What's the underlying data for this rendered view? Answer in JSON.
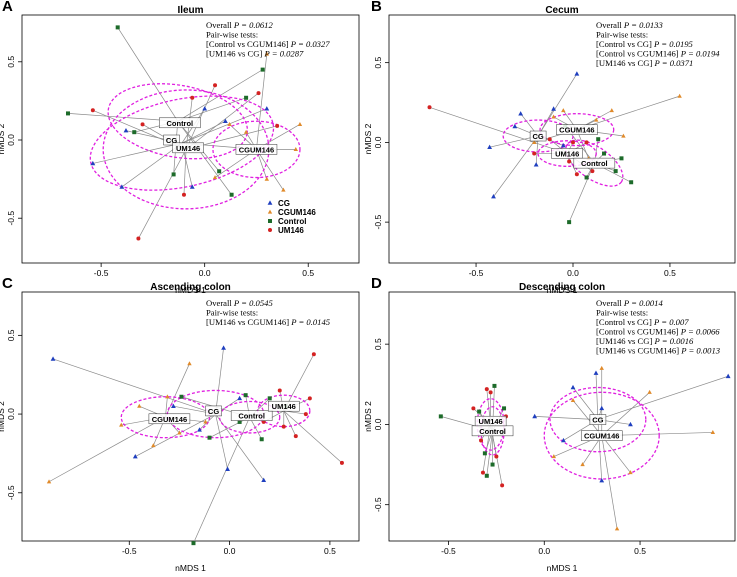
{
  "colors": {
    "CG": "#1f3fbf",
    "CGUM146": "#e08a2a",
    "Control": "#1d6b2a",
    "UM146": "#d42222",
    "ellipse": "#e020e0",
    "spoke": "#8a8a8a"
  },
  "chart_data": [
    {
      "type": "scatter",
      "letter": "A",
      "title": "Ileum",
      "xlabel": "nMDS 1",
      "ylabel": "nMDS 2",
      "xlim": [
        -0.8,
        0.75
      ],
      "ylim": [
        -0.78,
        0.78
      ],
      "xticks": [
        -0.5,
        0.0,
        0.5
      ],
      "xtick_labels": [
        "-0.5",
        "0.0",
        "0.5"
      ],
      "yticks": [
        -0.5,
        0.0,
        0.5
      ],
      "ytick_labels": [
        "-0.5",
        "0.0",
        "0.5"
      ],
      "annotations": [
        [
          "Overall ",
          "P = 0.0612"
        ],
        [
          "Pair-wise tests:",
          ""
        ],
        [
          "[Control vs CGUM146] ",
          "P = 0.0327"
        ],
        [
          "[UM146 vs CG] ",
          "P = 0.0287"
        ]
      ],
      "legend": {
        "entries": [
          "CG",
          "CGUM146",
          "Control",
          "UM146"
        ]
      },
      "groups": [
        {
          "name": "Control",
          "centroid": [
            -0.13,
            0.12
          ],
          "ell": [
            0.34,
            0.23,
            -10
          ],
          "points": [
            [
              -0.42,
              0.72
            ],
            [
              -0.66,
              0.17
            ],
            [
              0.28,
              0.45
            ],
            [
              0.2,
              0.27
            ],
            [
              0.07,
              -0.2
            ],
            [
              -0.15,
              -0.22
            ],
            [
              0.13,
              -0.35
            ],
            [
              -0.34,
              0.05
            ]
          ]
        },
        {
          "name": "CG",
          "centroid": [
            -0.11,
            -0.02
          ],
          "ell": [
            0.45,
            0.28,
            12
          ],
          "points": [
            [
              -0.54,
              -0.15
            ],
            [
              0.1,
              0.12
            ],
            [
              0.0,
              0.2
            ],
            [
              -0.38,
              0.06
            ],
            [
              -0.06,
              -0.3
            ],
            [
              0.3,
              0.2
            ],
            [
              0.26,
              -0.06
            ],
            [
              -0.4,
              -0.3
            ]
          ]
        },
        {
          "name": "UM146",
          "centroid": [
            -0.09,
            -0.06
          ],
          "ell": [
            0.4,
            0.38,
            0
          ],
          "points": [
            [
              -0.54,
              0.19
            ],
            [
              -0.06,
              0.27
            ],
            [
              -0.32,
              -0.63
            ],
            [
              -0.1,
              -0.35
            ],
            [
              0.26,
              0.3
            ],
            [
              0.35,
              0.09
            ],
            [
              0.05,
              0.35
            ],
            [
              -0.3,
              0.1
            ]
          ]
        },
        {
          "name": "CGUM146",
          "centroid": [
            0.25,
            -0.06
          ],
          "ell": [
            0.21,
            0.18,
            0
          ],
          "points": [
            [
              0.3,
              0.55
            ],
            [
              0.38,
              -0.32
            ],
            [
              0.12,
              0.1
            ],
            [
              0.46,
              0.1
            ],
            [
              0.44,
              -0.06
            ],
            [
              0.05,
              -0.24
            ],
            [
              0.3,
              -0.25
            ],
            [
              0.2,
              0.05
            ]
          ]
        }
      ],
      "labels": [
        [
          "Control",
          -0.12,
          0.11
        ],
        [
          "CG",
          -0.16,
          0.0
        ],
        [
          "UM146",
          -0.08,
          -0.05
        ],
        [
          "CGUM146",
          0.25,
          -0.06
        ]
      ]
    },
    {
      "type": "scatter",
      "letter": "B",
      "title": "Cecum",
      "xlabel": "nMDS 1",
      "ylabel": "nMDS 2",
      "xlim": [
        -0.82,
        0.82
      ],
      "ylim": [
        -0.75,
        0.78
      ],
      "xticks": [
        -0.5,
        0.0,
        0.5
      ],
      "xtick_labels": [
        "-0.5",
        "0.0",
        "0.5"
      ],
      "yticks": [
        -0.5,
        0.0,
        0.5
      ],
      "ytick_labels": [
        "-0.5",
        "0.0",
        "0.5"
      ],
      "annotations": [
        [
          "Overall ",
          "P = 0.0133"
        ],
        [
          "Pair-wise tests:",
          ""
        ],
        [
          "[Control vs CG] ",
          "P = 0.0195"
        ],
        [
          "[Control vs CGUM146] ",
          "P = 0.0194"
        ],
        [
          "[UM146 vs CG] ",
          "P = 0.0371"
        ]
      ],
      "groups": [
        {
          "name": "CG",
          "centroid": [
            -0.18,
            0.04
          ],
          "ell": [
            0.18,
            0.1,
            0
          ],
          "points": [
            [
              -0.41,
              -0.34
            ],
            [
              -0.43,
              -0.03
            ],
            [
              0.02,
              0.43
            ],
            [
              -0.1,
              0.21
            ],
            [
              -0.3,
              0.1
            ],
            [
              -0.27,
              0.18
            ],
            [
              -0.05,
              -0.02
            ],
            [
              -0.19,
              -0.14
            ]
          ]
        },
        {
          "name": "CGUM146",
          "centroid": [
            0.02,
            0.08
          ],
          "ell": [
            0.19,
            0.1,
            0
          ],
          "points": [
            [
              0.55,
              0.29
            ],
            [
              0.2,
              0.2
            ],
            [
              -0.1,
              0.16
            ],
            [
              0.12,
              0.14
            ],
            [
              -0.2,
              0.0
            ],
            [
              0.08,
              -0.1
            ],
            [
              0.26,
              0.04
            ],
            [
              -0.05,
              0.2
            ]
          ]
        },
        {
          "name": "UM146",
          "centroid": [
            -0.03,
            -0.07
          ],
          "ell": [
            0.15,
            0.08,
            0
          ],
          "points": [
            [
              -0.74,
              0.22
            ],
            [
              -0.2,
              -0.07
            ],
            [
              0.07,
              0.0
            ],
            [
              -0.02,
              -0.12
            ],
            [
              0.1,
              -0.18
            ],
            [
              0.02,
              -0.2
            ],
            [
              -0.12,
              0.02
            ],
            [
              0.0,
              0.0
            ]
          ]
        },
        {
          "name": "Control",
          "centroid": [
            0.11,
            -0.13
          ],
          "ell": [
            0.17,
            0.1,
            -35
          ],
          "points": [
            [
              -0.02,
              -0.5
            ],
            [
              0.16,
              -0.07
            ],
            [
              0.3,
              -0.25
            ],
            [
              0.25,
              -0.1
            ],
            [
              0.07,
              -0.22
            ],
            [
              0.13,
              0.02
            ],
            [
              -0.04,
              0.1
            ],
            [
              0.22,
              -0.18
            ]
          ]
        }
      ],
      "labels": [
        [
          "CG",
          -0.18,
          0.04
        ],
        [
          "CGUM146",
          0.02,
          0.08
        ],
        [
          "UM146",
          -0.03,
          -0.07
        ],
        [
          "Control",
          0.11,
          -0.13
        ]
      ]
    },
    {
      "type": "scatter",
      "letter": "C",
      "title": "Ascending colon",
      "xlabel": "nMDS 1",
      "ylabel": "nMDS 2",
      "xlim": [
        -0.95,
        0.65
      ],
      "ylim": [
        -0.8,
        0.75
      ],
      "xticks": [
        -0.5,
        0.0,
        0.5
      ],
      "xtick_labels": [
        "-0.5",
        "0.0",
        "0.5"
      ],
      "yticks": [
        -0.5,
        0.0,
        0.5
      ],
      "ytick_labels": [
        "-0.5",
        "0.0",
        "0.5"
      ],
      "annotations": [
        [
          "Overall ",
          "P = 0.0545"
        ],
        [
          "Pair-wise tests:",
          ""
        ],
        [
          "[UM146 vs CGUM146] ",
          "P = 0.0145"
        ]
      ],
      "groups": [
        {
          "name": "CGUM146",
          "centroid": [
            -0.32,
            -0.02
          ],
          "ell": [
            0.22,
            0.13,
            0
          ],
          "points": [
            [
              -0.9,
              -0.43
            ],
            [
              -0.54,
              -0.07
            ],
            [
              -0.31,
              0.11
            ],
            [
              -0.12,
              -0.05
            ],
            [
              -0.45,
              0.05
            ],
            [
              -0.2,
              0.32
            ],
            [
              -0.38,
              -0.2
            ],
            [
              -0.25,
              -0.12
            ]
          ]
        },
        {
          "name": "CG",
          "centroid": [
            -0.07,
            0.0
          ],
          "ell": [
            0.24,
            0.15,
            0
          ],
          "points": [
            [
              -0.88,
              0.35
            ],
            [
              -0.47,
              -0.27
            ],
            [
              -0.03,
              0.42
            ],
            [
              -0.01,
              -0.35
            ],
            [
              0.17,
              -0.42
            ],
            [
              -0.28,
              0.05
            ],
            [
              0.05,
              0.1
            ],
            [
              -0.15,
              -0.1
            ]
          ]
        },
        {
          "name": "Control",
          "centroid": [
            0.1,
            -0.02
          ],
          "ell": [
            0.15,
            0.1,
            0
          ],
          "points": [
            [
              -0.18,
              -0.82
            ],
            [
              -0.24,
              0.11
            ],
            [
              0.08,
              0.12
            ],
            [
              0.16,
              -0.16
            ],
            [
              0.28,
              0.05
            ],
            [
              -0.1,
              -0.15
            ],
            [
              0.05,
              -0.05
            ],
            [
              0.2,
              0.1
            ]
          ]
        },
        {
          "name": "UM146",
          "centroid": [
            0.27,
            0.02
          ],
          "ell": [
            0.13,
            0.1,
            0
          ],
          "points": [
            [
              0.42,
              0.38
            ],
            [
              0.56,
              -0.31
            ],
            [
              0.38,
              0.0
            ],
            [
              0.25,
              0.15
            ],
            [
              0.33,
              -0.14
            ],
            [
              0.17,
              -0.05
            ],
            [
              0.4,
              0.1
            ],
            [
              0.27,
              -0.08
            ]
          ]
        }
      ],
      "labels": [
        [
          "CGUM146",
          -0.3,
          -0.03
        ],
        [
          "CG",
          -0.08,
          0.02
        ],
        [
          "Control",
          0.11,
          -0.01
        ],
        [
          "UM146",
          0.27,
          0.05
        ]
      ]
    },
    {
      "type": "scatter",
      "letter": "D",
      "title": "Descending colon",
      "xlabel": "nMDS 1",
      "ylabel": "nMDS 2",
      "xlim": [
        -0.68,
        0.98
      ],
      "ylim": [
        -0.72,
        0.8
      ],
      "xticks": [
        -0.5,
        0.0,
        0.5
      ],
      "xtick_labels": [
        "-0.5",
        "0.0",
        "0.5"
      ],
      "yticks": [
        -0.5,
        0.0,
        0.5
      ],
      "ytick_labels": [
        "-0.5",
        "0.0",
        "0.5"
      ],
      "annotations": [
        [
          "Overall ",
          "P = 0.0014"
        ],
        [
          "Pair-wise tests:",
          ""
        ],
        [
          "[Control vs CG] ",
          "P = 0.007"
        ],
        [
          "[Control vs CGUM146] ",
          "P = 0.0066"
        ],
        [
          "[UM146 vs CG] ",
          "P = 0.0016"
        ],
        [
          "[UM146 vs CGUM146] ",
          "P = 0.0013"
        ]
      ],
      "groups": [
        {
          "name": "UM146",
          "centroid": [
            -0.28,
            0.0
          ],
          "ell": [
            0.07,
            0.16,
            0
          ],
          "points": [
            [
              -0.22,
              -0.38
            ],
            [
              -0.32,
              -0.3
            ],
            [
              -0.37,
              0.1
            ],
            [
              -0.28,
              0.2
            ],
            [
              -0.2,
              0.05
            ],
            [
              -0.33,
              -0.1
            ],
            [
              -0.25,
              -0.2
            ],
            [
              -0.3,
              0.22
            ]
          ]
        },
        {
          "name": "Control",
          "centroid": [
            -0.27,
            -0.04
          ],
          "ell": [
            0.06,
            0.15,
            0
          ],
          "points": [
            [
              -0.54,
              0.05
            ],
            [
              -0.3,
              -0.32
            ],
            [
              -0.26,
              0.24
            ],
            [
              -0.22,
              -0.05
            ],
            [
              -0.34,
              0.08
            ],
            [
              -0.27,
              -0.25
            ],
            [
              -0.21,
              0.1
            ],
            [
              -0.31,
              -0.18
            ]
          ]
        },
        {
          "name": "CG",
          "centroid": [
            0.28,
            0.03
          ],
          "ell": [
            0.25,
            0.2,
            0
          ],
          "points": [
            [
              0.96,
              0.3
            ],
            [
              -0.05,
              0.05
            ],
            [
              0.3,
              -0.35
            ],
            [
              0.27,
              0.32
            ],
            [
              0.15,
              0.23
            ],
            [
              0.45,
              0.0
            ],
            [
              0.1,
              -0.1
            ],
            [
              0.3,
              0.1
            ]
          ]
        },
        {
          "name": "CGUM146",
          "centroid": [
            0.3,
            -0.07
          ],
          "ell": [
            0.3,
            0.27,
            0
          ],
          "points": [
            [
              0.88,
              -0.05
            ],
            [
              0.38,
              -0.65
            ],
            [
              0.3,
              0.35
            ],
            [
              0.05,
              -0.2
            ],
            [
              0.55,
              0.2
            ],
            [
              0.15,
              0.15
            ],
            [
              0.45,
              -0.3
            ],
            [
              0.2,
              -0.25
            ]
          ]
        }
      ],
      "labels": [
        [
          "UM146",
          -0.28,
          0.02
        ],
        [
          "Control",
          -0.27,
          -0.04
        ],
        [
          "CG",
          0.28,
          0.03
        ],
        [
          "CGUM146",
          0.3,
          -0.07
        ]
      ]
    }
  ]
}
